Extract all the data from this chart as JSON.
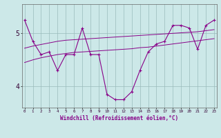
{
  "xlabel": "Windchill (Refroidissement éolien,°C)",
  "background_color": "#cce8e8",
  "line_color": "#880088",
  "x_hours": [
    0,
    1,
    2,
    3,
    4,
    5,
    6,
    7,
    8,
    9,
    10,
    11,
    12,
    13,
    14,
    15,
    16,
    17,
    18,
    19,
    20,
    21,
    22,
    23
  ],
  "y_main": [
    5.25,
    4.85,
    4.6,
    4.65,
    4.3,
    4.6,
    4.6,
    5.1,
    4.6,
    4.6,
    3.85,
    3.75,
    3.75,
    3.9,
    4.3,
    4.65,
    4.8,
    4.85,
    5.15,
    5.15,
    5.1,
    4.7,
    5.15,
    5.25
  ],
  "y_trend1": [
    4.72,
    4.76,
    4.79,
    4.82,
    4.85,
    4.87,
    4.88,
    4.89,
    4.9,
    4.91,
    4.92,
    4.93,
    4.94,
    4.95,
    4.96,
    4.97,
    4.98,
    4.99,
    5.0,
    5.01,
    5.02,
    5.03,
    5.05,
    5.07
  ],
  "y_trend2": [
    4.45,
    4.5,
    4.54,
    4.57,
    4.6,
    4.62,
    4.64,
    4.65,
    4.66,
    4.67,
    4.68,
    4.69,
    4.7,
    4.71,
    4.73,
    4.74,
    4.76,
    4.78,
    4.8,
    4.82,
    4.84,
    4.86,
    4.88,
    4.9
  ],
  "ylim": [
    3.6,
    5.55
  ],
  "yticks": [
    4.0,
    5.0
  ],
  "ytick_labels": [
    "4",
    "5"
  ],
  "xlim": [
    -0.3,
    23.3
  ],
  "grid_color": "#99bbbb",
  "fig_bg": "#cce8e8"
}
